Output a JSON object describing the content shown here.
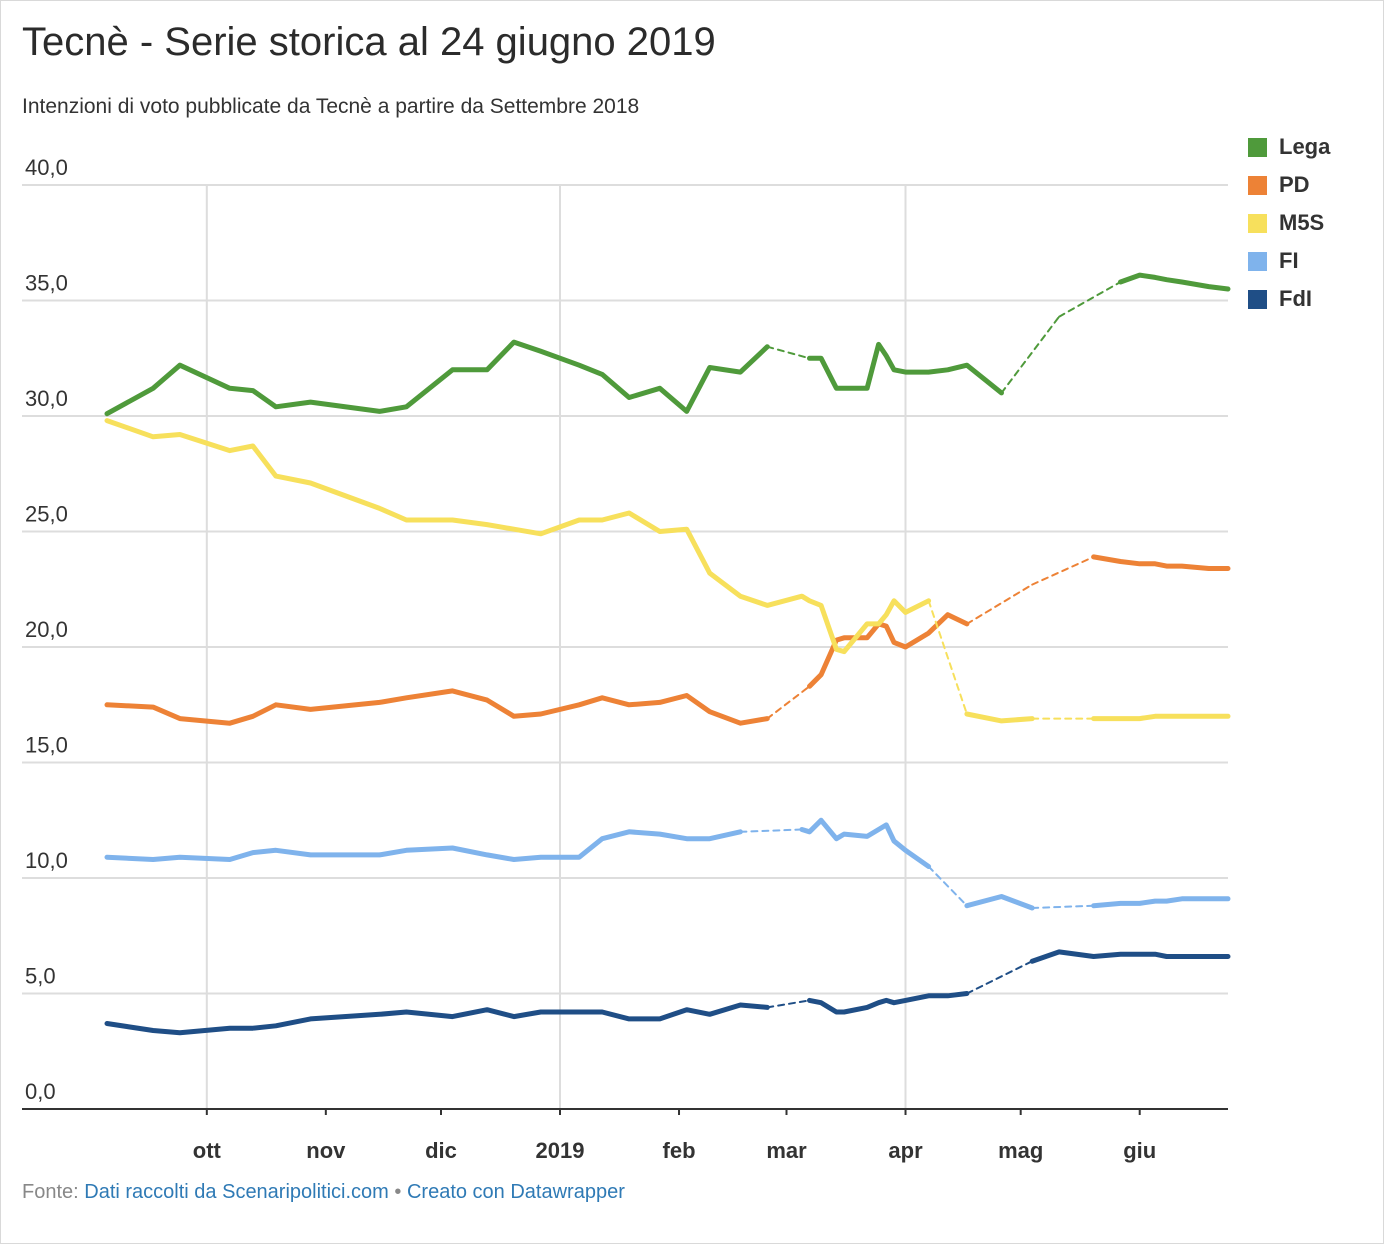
{
  "title": "Tecnè - Serie storica al 24 giugno 2019",
  "subtitle": "Intenzioni di voto pubblicate da Tecnè a partire da Settembre 2018",
  "footer": {
    "source_prefix": "Fonte:",
    "source_link": "Dati raccolti da Scenaripolitici.com",
    "separator": "•",
    "credit_link": "Creato con Datawrapper"
  },
  "chart_data": {
    "type": "line",
    "title": "Tecnè - Serie storica al 24 giugno 2019",
    "xlabel": "",
    "ylabel": "",
    "x_range": [
      "2018-09-05",
      "2019-06-24"
    ],
    "ylim": [
      0,
      40
    ],
    "yticks": [
      "0,0",
      "5,0",
      "10,0",
      "15,0",
      "20,0",
      "25,0",
      "30,0",
      "35,0",
      "40,0"
    ],
    "xticks": [
      {
        "label": "ott",
        "date": "2018-10-01"
      },
      {
        "label": "nov",
        "date": "2018-11-01"
      },
      {
        "label": "dic",
        "date": "2018-12-01"
      },
      {
        "label": "2019",
        "date": "2019-01-01"
      },
      {
        "label": "feb",
        "date": "2019-02-01"
      },
      {
        "label": "mar",
        "date": "2019-03-01"
      },
      {
        "label": "apr",
        "date": "2019-04-01"
      },
      {
        "label": "mag",
        "date": "2019-05-01"
      },
      {
        "label": "giu",
        "date": "2019-06-01"
      }
    ],
    "vertical_gridlines": [
      "2018-10-01",
      "2019-01-01",
      "2019-04-01"
    ],
    "grid": true,
    "legend_position": "top-right",
    "dates": [
      "2018-09-05",
      "2018-09-17",
      "2018-09-24",
      "2018-10-07",
      "2018-10-13",
      "2018-10-19",
      "2018-10-28",
      "2018-11-15",
      "2018-11-22",
      "2018-12-04",
      "2018-12-13",
      "2018-12-20",
      "2018-12-27",
      "2019-01-06",
      "2019-01-12",
      "2019-01-19",
      "2019-01-27",
      "2019-02-03",
      "2019-02-09",
      "2019-02-17",
      "2019-02-24",
      "2019-03-05",
      "2019-03-07",
      "2019-03-10",
      "2019-03-14",
      "2019-03-16",
      "2019-03-22",
      "2019-03-25",
      "2019-03-27",
      "2019-03-29",
      "2019-04-01",
      "2019-04-07",
      "2019-04-12",
      "2019-04-17",
      "2019-04-26",
      "2019-05-04",
      "2019-05-11",
      "2019-05-20",
      "2019-05-27",
      "2019-06-01",
      "2019-06-05",
      "2019-06-08",
      "2019-06-12",
      "2019-06-19",
      "2019-06-24"
    ],
    "series": [
      {
        "name": "Lega",
        "color": "#4f9a3b",
        "values": [
          30.1,
          31.2,
          32.2,
          31.2,
          31.1,
          30.4,
          30.6,
          30.2,
          30.4,
          32.0,
          32.0,
          33.2,
          32.8,
          32.2,
          31.8,
          30.8,
          31.2,
          30.2,
          32.1,
          31.9,
          33.0,
          null,
          32.5,
          32.5,
          31.2,
          31.2,
          31.2,
          33.1,
          32.6,
          32.0,
          31.9,
          31.9,
          32.0,
          32.2,
          31.0,
          null,
          34.3,
          null,
          35.8,
          36.1,
          36.0,
          35.9,
          35.8,
          35.6,
          35.5
        ]
      },
      {
        "name": "PD",
        "color": "#ed8236",
        "values": [
          17.5,
          17.4,
          16.9,
          16.7,
          17.0,
          17.5,
          17.3,
          17.6,
          17.8,
          18.1,
          17.7,
          17.0,
          17.1,
          17.5,
          17.8,
          17.5,
          17.6,
          17.9,
          17.2,
          16.7,
          16.9,
          null,
          18.3,
          18.8,
          20.3,
          20.4,
          20.4,
          21.0,
          20.9,
          20.2,
          20.0,
          20.6,
          21.4,
          21.0,
          null,
          22.7,
          null,
          23.9,
          23.7,
          23.6,
          23.6,
          23.5,
          23.5,
          23.4,
          23.4
        ]
      },
      {
        "name": "M5S",
        "color": "#f7e05c",
        "values": [
          29.8,
          29.1,
          29.2,
          28.5,
          28.7,
          27.4,
          27.1,
          26.0,
          25.5,
          25.5,
          25.3,
          25.1,
          24.9,
          25.5,
          25.5,
          25.8,
          25.0,
          25.1,
          23.2,
          22.2,
          21.8,
          22.2,
          22.0,
          21.8,
          19.9,
          19.8,
          21.0,
          21.0,
          21.4,
          22.0,
          21.5,
          22.0,
          null,
          17.1,
          16.8,
          16.9,
          null,
          16.9,
          16.9,
          16.9,
          17.0,
          17.0,
          17.0,
          17.0,
          17.0
        ]
      },
      {
        "name": "FI",
        "color": "#7fb3ec",
        "values": [
          10.9,
          10.8,
          10.9,
          10.8,
          11.1,
          11.2,
          11.0,
          11.0,
          11.2,
          11.3,
          11.0,
          10.8,
          10.9,
          10.9,
          11.7,
          12.0,
          11.9,
          11.7,
          11.7,
          12.0,
          null,
          12.1,
          12.0,
          12.5,
          11.7,
          11.9,
          11.8,
          12.1,
          12.3,
          11.6,
          11.2,
          10.5,
          null,
          8.8,
          9.2,
          8.7,
          null,
          8.8,
          8.9,
          8.9,
          9.0,
          9.0,
          9.1,
          9.1,
          9.1
        ]
      },
      {
        "name": "FdI",
        "color": "#1f4e86",
        "values": [
          3.7,
          3.4,
          3.3,
          3.5,
          3.5,
          3.6,
          3.9,
          4.1,
          4.2,
          4.0,
          4.3,
          4.0,
          4.2,
          4.2,
          4.2,
          3.9,
          3.9,
          4.3,
          4.1,
          4.5,
          4.4,
          null,
          4.7,
          4.6,
          4.2,
          4.2,
          4.4,
          4.6,
          4.7,
          4.6,
          4.7,
          4.9,
          4.9,
          5.0,
          null,
          6.4,
          6.8,
          6.6,
          6.7,
          6.7,
          6.7,
          6.6,
          6.6,
          6.6,
          6.6
        ]
      }
    ]
  }
}
